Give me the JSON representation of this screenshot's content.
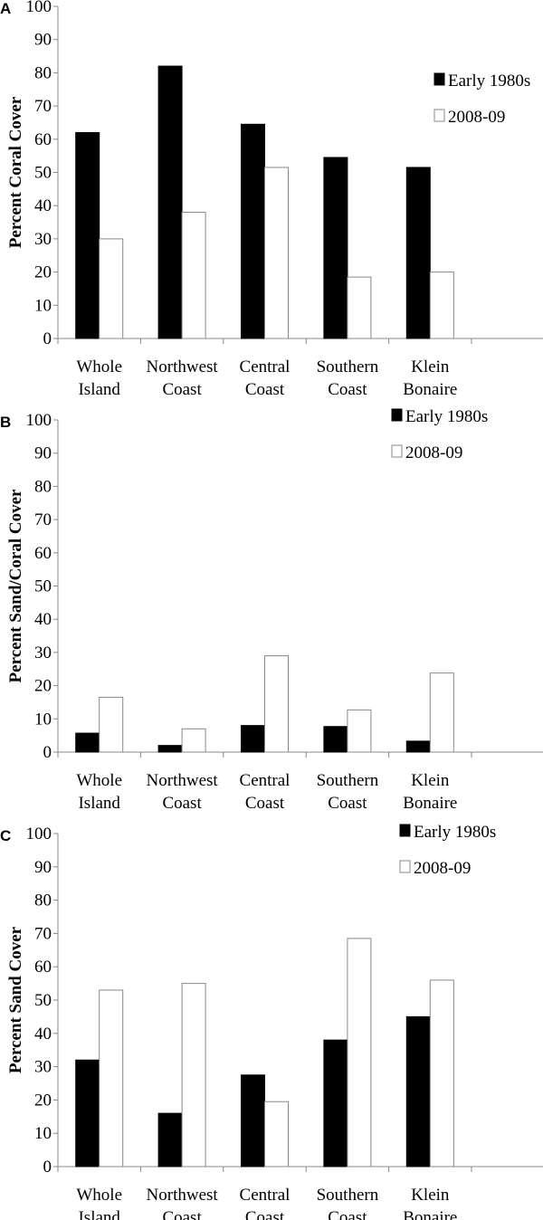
{
  "chart_data": [
    {
      "type": "bar",
      "panel": "A",
      "ylabel": "Percent Coral Cover",
      "ylim": [
        0,
        100
      ],
      "yticks": [
        "0",
        "10",
        "20",
        "30",
        "40",
        "50",
        "60",
        "70",
        "80",
        "90",
        "100"
      ],
      "categories": [
        [
          "Whole",
          "Island"
        ],
        [
          "Northwest",
          "Coast"
        ],
        [
          "Central",
          "Coast"
        ],
        [
          "Southern",
          "Coast"
        ],
        [
          "Klein",
          "Bonaire"
        ]
      ],
      "legend_position": "top-right",
      "series": [
        {
          "name": "Early 1980s",
          "color": "#000000",
          "values": [
            62,
            82,
            64.5,
            54.5,
            51.5
          ]
        },
        {
          "name": "2008-09",
          "color": "#ffffff",
          "values": [
            30,
            38,
            51.5,
            18.5,
            20
          ]
        }
      ]
    },
    {
      "type": "bar",
      "panel": "B",
      "ylabel": "Percent Sand/Coral Cover",
      "ylim": [
        0,
        100
      ],
      "yticks": [
        "0",
        "10",
        "20",
        "30",
        "40",
        "50",
        "60",
        "70",
        "80",
        "90",
        "100"
      ],
      "categories": [
        [
          "Whole",
          "Island"
        ],
        [
          "Northwest",
          "Coast"
        ],
        [
          "Central",
          "Coast"
        ],
        [
          "Southern",
          "Coast"
        ],
        [
          "Klein",
          "Bonaire"
        ]
      ],
      "legend_position": "top-right",
      "series": [
        {
          "name": "Early 1980s",
          "color": "#000000",
          "values": [
            5.7,
            2,
            8,
            7.7,
            3.3
          ]
        },
        {
          "name": "2008-09",
          "color": "#ffffff",
          "values": [
            16.5,
            7,
            29,
            12.7,
            23.8
          ]
        }
      ]
    },
    {
      "type": "bar",
      "panel": "C",
      "ylabel": "Percent Sand Cover",
      "ylim": [
        0,
        100
      ],
      "yticks": [
        "0",
        "10",
        "20",
        "30",
        "40",
        "50",
        "60",
        "70",
        "80",
        "90",
        "100"
      ],
      "categories": [
        [
          "Whole",
          "Island"
        ],
        [
          "Northwest",
          "Coast"
        ],
        [
          "Central",
          "Coast"
        ],
        [
          "Southern",
          "Coast"
        ],
        [
          "Klein",
          "Bonaire"
        ]
      ],
      "legend_position": "top-right",
      "series": [
        {
          "name": "Early 1980s",
          "color": "#000000",
          "values": [
            32,
            16,
            27.5,
            38,
            45
          ]
        },
        {
          "name": "2008-09",
          "color": "#ffffff",
          "values": [
            53,
            55,
            19.5,
            68.5,
            56
          ]
        }
      ]
    }
  ]
}
